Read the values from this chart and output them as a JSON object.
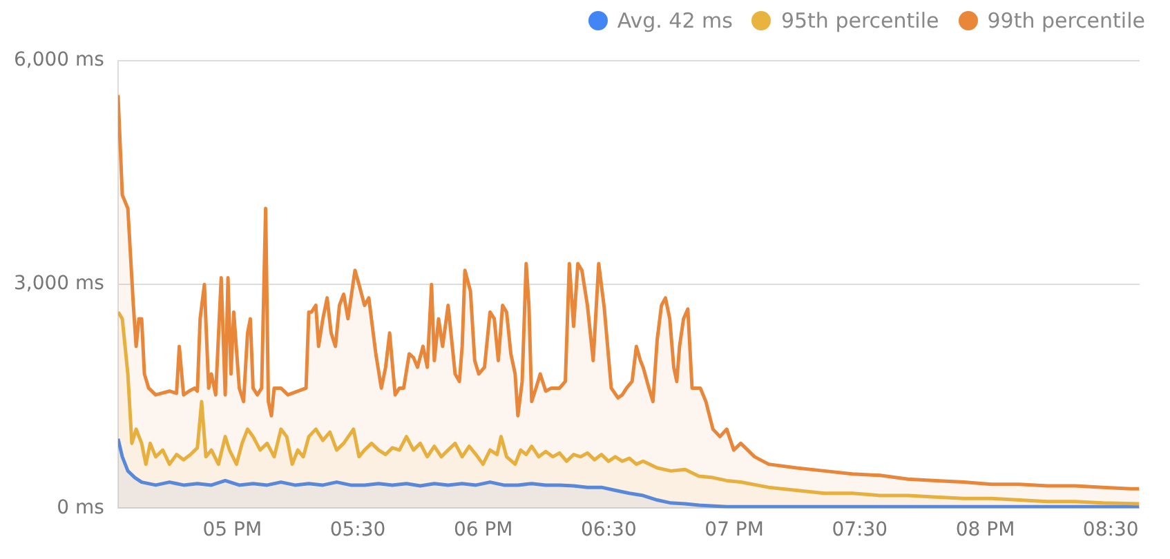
{
  "chart_data": {
    "type": "area",
    "xlim": [
      4.545,
      8.615
    ],
    "ylim": [
      0,
      6000
    ],
    "xticks": [
      {
        "value": 5,
        "label": "05 PM"
      },
      {
        "value": 5.5,
        "label": "05:30"
      },
      {
        "value": 6,
        "label": "06 PM"
      },
      {
        "value": 6.5,
        "label": "06:30"
      },
      {
        "value": 7,
        "label": "07 PM"
      },
      {
        "value": 7.5,
        "label": "07:30"
      },
      {
        "value": 8,
        "label": "08 PM"
      },
      {
        "value": 8.5,
        "label": "08:30"
      }
    ],
    "yticks": [
      {
        "value": 0,
        "label": "0 ms"
      },
      {
        "value": 3000,
        "label": "3,000 ms"
      },
      {
        "value": 6000,
        "label": "6,000 ms"
      }
    ],
    "grid": "y",
    "legend": "top right",
    "series": [
      {
        "name": "99th percentile",
        "color": "#e8873a",
        "x": [
          4.545,
          4.562,
          4.584,
          4.606,
          4.617,
          4.628,
          4.639,
          4.65,
          4.667,
          4.695,
          4.75,
          4.778,
          4.789,
          4.806,
          4.828,
          4.85,
          4.861,
          4.872,
          4.889,
          4.906,
          4.917,
          4.934,
          4.956,
          4.972,
          4.983,
          4.995,
          5.006,
          5.028,
          5.045,
          5.061,
          5.072,
          5.083,
          5.1,
          5.117,
          5.133,
          5.144,
          5.156,
          5.167,
          5.194,
          5.222,
          5.294,
          5.305,
          5.316,
          5.333,
          5.344,
          5.361,
          5.378,
          5.394,
          5.411,
          5.427,
          5.444,
          5.461,
          5.489,
          5.505,
          5.527,
          5.544,
          5.572,
          5.594,
          5.611,
          5.627,
          5.649,
          5.666,
          5.683,
          5.705,
          5.722,
          5.738,
          5.76,
          5.777,
          5.794,
          5.805,
          5.822,
          5.838,
          5.86,
          5.888,
          5.905,
          5.916,
          5.927,
          5.949,
          5.966,
          5.982,
          6.005,
          6.027,
          6.044,
          6.06,
          6.077,
          6.093,
          6.11,
          6.127,
          6.138,
          6.155,
          6.171,
          6.182,
          6.193,
          6.21,
          6.227,
          6.249,
          6.271,
          6.304,
          6.327,
          6.343,
          6.36,
          6.377,
          6.393,
          6.415,
          6.438,
          6.46,
          6.482,
          6.51,
          6.537,
          6.554,
          6.571,
          6.593,
          6.61,
          6.626,
          6.637,
          6.66,
          6.676,
          6.693,
          6.71,
          6.726,
          6.743,
          6.759,
          6.771,
          6.782,
          6.798,
          6.815,
          6.832,
          6.865,
          6.887,
          6.915,
          6.943,
          6.97,
          6.998,
          7.026,
          7.081,
          7.137,
          7.248,
          7.359,
          7.47,
          7.581,
          7.692,
          7.803,
          7.914,
          8.025,
          8.136,
          8.247,
          8.358,
          8.469,
          8.58,
          8.613
        ],
        "values": [
          5540,
          4200,
          4020,
          2720,
          2170,
          2540,
          2540,
          1800,
          1610,
          1520,
          1570,
          1540,
          2170,
          1520,
          1570,
          1610,
          1570,
          2540,
          3000,
          1610,
          1800,
          1520,
          3090,
          1520,
          3090,
          1800,
          2630,
          1610,
          1430,
          2350,
          2540,
          1610,
          1520,
          1610,
          4020,
          1430,
          1240,
          1610,
          1610,
          1520,
          1610,
          2630,
          2630,
          2720,
          2170,
          2540,
          2820,
          2350,
          2170,
          2720,
          2870,
          2540,
          3190,
          3000,
          2720,
          2820,
          2070,
          1610,
          1890,
          2350,
          1520,
          1610,
          1610,
          2070,
          2020,
          1890,
          2170,
          1890,
          3000,
          1980,
          2540,
          2170,
          2720,
          1800,
          1700,
          2170,
          3190,
          2910,
          1980,
          1800,
          1890,
          2630,
          2540,
          1980,
          2720,
          2630,
          2070,
          1800,
          1240,
          1700,
          3280,
          2720,
          1430,
          1610,
          1800,
          1570,
          1610,
          1610,
          1700,
          3280,
          2440,
          3280,
          3190,
          2720,
          1980,
          3280,
          2690,
          1610,
          1480,
          1520,
          1610,
          1700,
          2170,
          1980,
          1890,
          1610,
          1430,
          2260,
          2720,
          2820,
          2540,
          1890,
          1700,
          2170,
          2540,
          2670,
          1610,
          1610,
          1430,
          1060,
          960,
          1060,
          780,
          870,
          690,
          590,
          540,
          500,
          460,
          440,
          390,
          370,
          350,
          320,
          320,
          300,
          300,
          280,
          260,
          260
        ]
      },
      {
        "name": "95th percentile",
        "color": "#e8b33e",
        "x": [
          4.545,
          4.562,
          4.584,
          4.6,
          4.617,
          4.639,
          4.656,
          4.673,
          4.695,
          4.723,
          4.75,
          4.778,
          4.806,
          4.834,
          4.861,
          4.878,
          4.895,
          4.917,
          4.945,
          4.972,
          4.989,
          5.017,
          5.039,
          5.061,
          5.083,
          5.111,
          5.139,
          5.167,
          5.194,
          5.217,
          5.239,
          5.261,
          5.283,
          5.305,
          5.333,
          5.361,
          5.389,
          5.416,
          5.444,
          5.483,
          5.505,
          5.527,
          5.555,
          5.583,
          5.611,
          5.638,
          5.666,
          5.694,
          5.722,
          5.749,
          5.777,
          5.805,
          5.833,
          5.86,
          5.888,
          5.916,
          5.944,
          5.971,
          5.999,
          6.027,
          6.055,
          6.071,
          6.093,
          6.127,
          6.149,
          6.171,
          6.193,
          6.221,
          6.249,
          6.277,
          6.304,
          6.332,
          6.36,
          6.388,
          6.415,
          6.443,
          6.471,
          6.499,
          6.526,
          6.554,
          6.582,
          6.61,
          6.637,
          6.693,
          6.748,
          6.804,
          6.859,
          6.915,
          6.97,
          7.026,
          7.137,
          7.248,
          7.359,
          7.47,
          7.581,
          7.692,
          7.803,
          7.914,
          8.025,
          8.136,
          8.247,
          8.358,
          8.469,
          8.613
        ],
        "values": [
          2630,
          2540,
          1800,
          870,
          1060,
          870,
          590,
          870,
          690,
          780,
          590,
          720,
          650,
          720,
          810,
          1430,
          690,
          780,
          590,
          960,
          780,
          590,
          870,
          1060,
          960,
          780,
          870,
          690,
          1060,
          960,
          590,
          780,
          690,
          960,
          1060,
          910,
          1020,
          780,
          870,
          1060,
          690,
          780,
          870,
          780,
          720,
          810,
          780,
          960,
          780,
          870,
          690,
          830,
          690,
          780,
          870,
          690,
          830,
          720,
          590,
          780,
          720,
          960,
          690,
          590,
          780,
          720,
          830,
          690,
          760,
          690,
          740,
          630,
          720,
          690,
          740,
          650,
          720,
          630,
          690,
          630,
          670,
          590,
          630,
          540,
          500,
          520,
          430,
          410,
          370,
          350,
          280,
          240,
          200,
          200,
          170,
          170,
          150,
          130,
          130,
          110,
          90,
          90,
          70,
          60
        ]
      },
      {
        "name": "Avg. 42 ms",
        "color": "#4285f4",
        "x": [
          4.545,
          4.562,
          4.584,
          4.612,
          4.639,
          4.695,
          4.75,
          4.806,
          4.861,
          4.917,
          4.972,
          5.028,
          5.083,
          5.139,
          5.194,
          5.25,
          5.305,
          5.361,
          5.416,
          5.472,
          5.527,
          5.583,
          5.638,
          5.694,
          5.749,
          5.805,
          5.86,
          5.916,
          5.971,
          6.027,
          6.082,
          6.138,
          6.193,
          6.249,
          6.304,
          6.36,
          6.415,
          6.471,
          6.526,
          6.582,
          6.637,
          6.693,
          6.748,
          6.804,
          6.859,
          6.97,
          7.137,
          7.359,
          8.613
        ],
        "values": [
          930,
          690,
          500,
          410,
          350,
          310,
          350,
          310,
          330,
          310,
          370,
          310,
          330,
          310,
          350,
          310,
          330,
          310,
          350,
          310,
          310,
          330,
          310,
          330,
          300,
          330,
          310,
          330,
          310,
          350,
          310,
          310,
          330,
          310,
          310,
          300,
          280,
          280,
          240,
          200,
          170,
          110,
          70,
          60,
          40,
          20,
          20,
          20,
          20
        ]
      }
    ]
  }
}
